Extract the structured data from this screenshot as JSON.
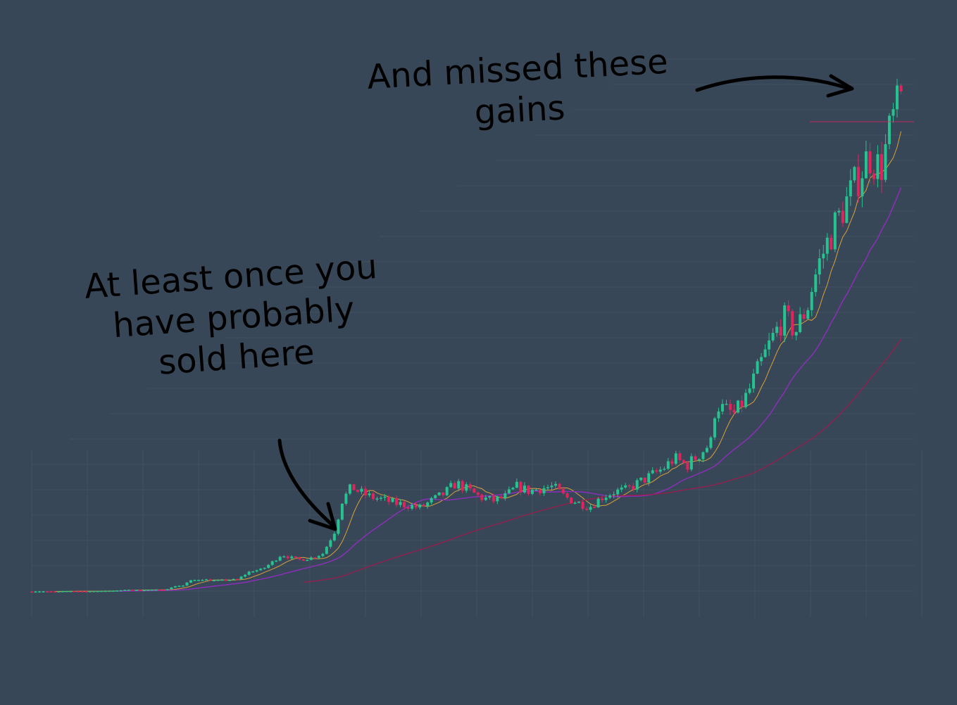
{
  "annotations": {
    "sold": {
      "lines": [
        "At least once you",
        "have probably",
        "sold here"
      ]
    },
    "missed": {
      "lines": [
        "And missed these",
        "gains"
      ]
    }
  },
  "colors": {
    "background": "#384757",
    "grid": "#42525f",
    "up_candle": "#26c28f",
    "down_candle": "#e0245e",
    "ma_short": "#d9a13a",
    "ma_medium": "#8a2fb8",
    "ma_long": "#a01a4e",
    "price_line": "#e0245e",
    "annotation": "#000000"
  },
  "chart_data": {
    "type": "candlestick",
    "title": "",
    "xlabel": "",
    "ylabel": "",
    "grid": true,
    "ylim": [
      0,
      100
    ],
    "price_level": 86,
    "series": [
      {
        "type": "candlestick",
        "x": [
          0,
          5,
          10,
          15,
          20,
          25,
          30,
          35,
          40,
          45,
          50,
          55,
          60,
          62,
          65,
          70,
          75,
          80,
          85,
          90,
          95,
          100,
          103,
          106,
          110,
          115,
          120,
          125,
          128,
          132,
          135,
          140,
          145,
          150,
          155,
          160,
          165,
          170,
          175,
          180,
          185,
          190,
          195,
          200,
          205,
          210,
          215,
          220,
          225,
          230,
          235,
          240,
          245,
          250,
          255,
          260,
          265,
          270,
          275,
          280,
          282,
          285,
          290,
          295,
          300,
          305,
          310,
          315,
          320,
          322,
          325,
          330,
          335,
          340,
          345,
          350,
          355,
          360
        ],
        "close": [
          0.5,
          0.6,
          0.5,
          0.8,
          0.7,
          0.7,
          0.9,
          1.0,
          1.5,
          1.3,
          1.6,
          1.4,
          4.0,
          3.5,
          6.5,
          7.5,
          6.8,
          7.0,
          7.5,
          12.0,
          13.0,
          18.0,
          21.5,
          20.0,
          18.5,
          19.5,
          22.0,
          35.0,
          52.0,
          60.0,
          57.0,
          54.0,
          52.5,
          50.5,
          49.5,
          48.0,
          52.0,
          56.0,
          62.0,
          58.0,
          54.0,
          52.0,
          54.0,
          60.0,
          57.5,
          59.0,
          60.0,
          54.0,
          51.0,
          48.5,
          54.0,
          57.0,
          58.0,
          62.0,
          66.0,
          70.0,
          76.0,
          72.0,
          78.0,
          85.0,
          107.0,
          104.0,
          101.0,
          112.0,
          128.0,
          143.0,
          156.0,
          148.0,
          163.0,
          175.0,
          188.0,
          205.0,
          219.0,
          233.0,
          248.0,
          240.0,
          268.0,
          285.0
        ]
      },
      {
        "name": "",
        "type": "ma",
        "values": []
      },
      {
        "name": "",
        "type": "ma",
        "values": []
      },
      {
        "name": "",
        "type": "ma",
        "values": []
      }
    ]
  }
}
